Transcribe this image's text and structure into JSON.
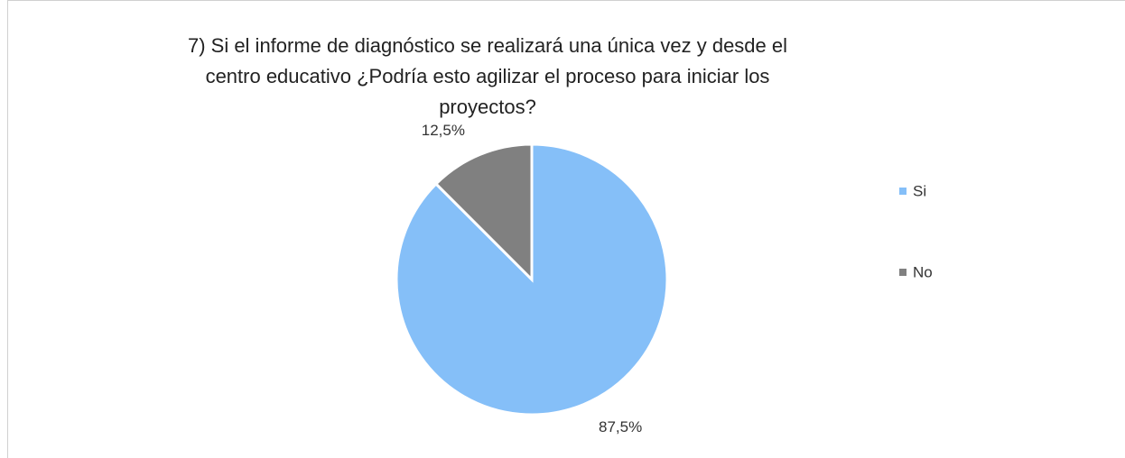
{
  "chart_data": {
    "type": "pie",
    "title": "7) Si el informe de diagnóstico se realizará una única vez y desde el centro educativo ¿Podría esto agilizar el proceso para iniciar los proyectos?",
    "categories": [
      "Si",
      "No"
    ],
    "values": [
      87.5,
      12.5
    ],
    "value_labels": [
      "87,5%",
      "12,5%"
    ],
    "colors": [
      "#85bff8",
      "#808080"
    ],
    "legend": "right"
  }
}
